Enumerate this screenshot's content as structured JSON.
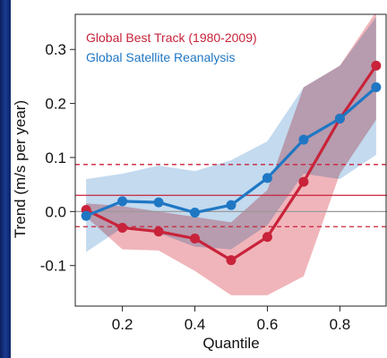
{
  "chart_data": {
    "type": "line",
    "title": "",
    "xlabel": "Quantile",
    "ylabel": "Trend (m/s per year)",
    "xlim": [
      0.07,
      0.93
    ],
    "ylim": [
      -0.175,
      0.365
    ],
    "xticks": [
      0.2,
      0.4,
      0.6,
      0.8
    ],
    "xtick_labels": [
      "0.2",
      "0.4",
      "0.6",
      "0.8"
    ],
    "yticks": [
      -0.1,
      0.0,
      0.1,
      0.2,
      0.3
    ],
    "ytick_labels": [
      "-0.1",
      "0.0",
      "0.1",
      "0.2",
      "0.3"
    ],
    "legend_position": "top-left",
    "grid": false,
    "x": [
      0.1,
      0.2,
      0.3,
      0.4,
      0.5,
      0.6,
      0.7,
      0.8,
      0.9
    ],
    "series": [
      {
        "name": "Global Best Track (1980-2009)",
        "color": "#c8233a",
        "band_color": "#eb9ca3",
        "values": [
          0.003,
          -0.03,
          -0.037,
          -0.05,
          -0.09,
          -0.047,
          0.055,
          0.172,
          0.27
        ],
        "lower": [
          -0.01,
          -0.07,
          -0.072,
          -0.11,
          -0.155,
          -0.155,
          -0.12,
          0.07,
          0.17
        ],
        "upper": [
          0.015,
          0.01,
          0.0,
          -0.01,
          -0.02,
          0.04,
          0.23,
          0.27,
          0.37
        ]
      },
      {
        "name": "Global Satellite Reanalysis",
        "color": "#1f77c4",
        "band_color": "#a9cbe8",
        "values": [
          -0.008,
          0.019,
          0.017,
          -0.002,
          0.012,
          0.062,
          0.133,
          0.172,
          0.23
        ],
        "lower": [
          -0.075,
          -0.03,
          -0.04,
          -0.065,
          -0.07,
          -0.025,
          0.07,
          0.06,
          0.105
        ],
        "upper": [
          0.06,
          0.07,
          0.085,
          0.075,
          0.095,
          0.13,
          0.23,
          0.27,
          0.36
        ]
      }
    ],
    "reference_lines": [
      {
        "y": 0.0,
        "style": "solid",
        "color": "#9a9a9a"
      },
      {
        "y": 0.03,
        "style": "solid",
        "color": "#c8233a"
      },
      {
        "y": 0.087,
        "style": "dashed",
        "color": "#c8233a"
      },
      {
        "y": -0.028,
        "style": "dashed",
        "color": "#c8233a"
      }
    ]
  }
}
